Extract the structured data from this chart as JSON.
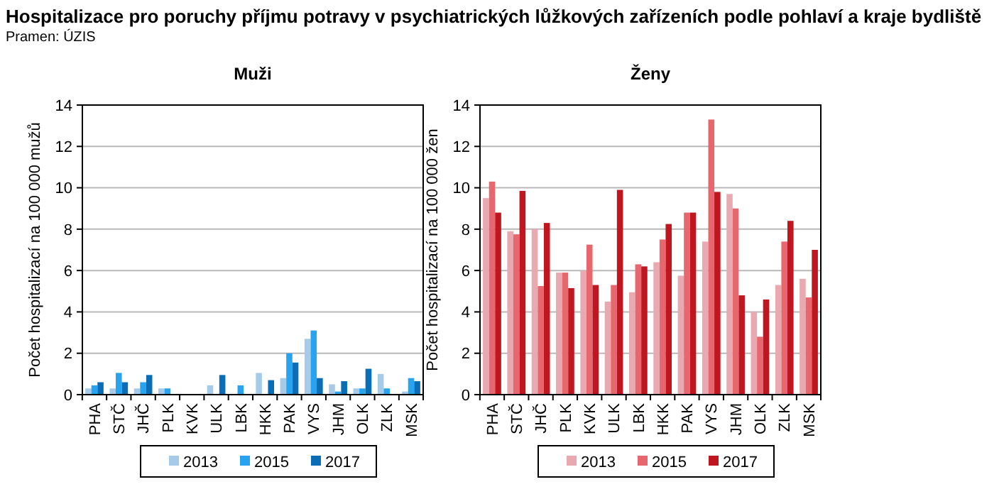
{
  "chart_data": [
    {
      "type": "bar",
      "title": "Hospitalizace pro poruchy příjmu potravy v psychiatrických lůžkových zařízeních podle pohlaví a kraje bydliště",
      "subtitle": "Muži",
      "annotations": [
        "Pramen: ÚZIS"
      ],
      "ylabel": "Počet hospitalizací na 100 000 mužů",
      "categories": [
        "PHA",
        "STČ",
        "JHČ",
        "PLK",
        "KVK",
        "ULK",
        "LBK",
        "HKK",
        "PAK",
        "VYS",
        "JHM",
        "OLK",
        "ZLK",
        "MSK"
      ],
      "series": [
        {
          "name": "2013",
          "color": "#a6cbe8",
          "values": [
            0.3,
            0.3,
            0.3,
            0.3,
            0,
            0.45,
            0,
            1.05,
            0.8,
            2.7,
            0.5,
            0.3,
            1.0,
            0.15
          ]
        },
        {
          "name": "2015",
          "color": "#27a3f0",
          "values": [
            0.45,
            1.05,
            0.6,
            0.3,
            0,
            0,
            0.45,
            0,
            2.0,
            3.1,
            0.15,
            0.3,
            0.3,
            0.8
          ]
        },
        {
          "name": "2017",
          "color": "#0b6db5",
          "values": [
            0.6,
            0.6,
            0.95,
            0,
            0,
            0.95,
            0,
            0.7,
            1.55,
            0.8,
            0.65,
            1.25,
            0,
            0.65
          ]
        }
      ],
      "ylim": [
        0,
        14
      ],
      "yticks": [
        0,
        2,
        4,
        6,
        8,
        10,
        12,
        14
      ],
      "grid": "y",
      "legend": "bottom"
    },
    {
      "type": "bar",
      "subtitle": "Ženy",
      "ylabel": "Počet hospitalizací na 100 000 žen",
      "categories": [
        "PHA",
        "STČ",
        "JHČ",
        "PLK",
        "KVK",
        "ULK",
        "LBK",
        "HKK",
        "PAK",
        "VYS",
        "JHM",
        "OLK",
        "ZLK",
        "MSK"
      ],
      "series": [
        {
          "name": "2013",
          "color": "#e8aab0",
          "values": [
            9.5,
            7.9,
            8.0,
            5.9,
            6.0,
            4.5,
            4.95,
            6.4,
            5.75,
            7.4,
            9.7,
            4.0,
            5.3,
            5.6
          ]
        },
        {
          "name": "2015",
          "color": "#e8676f",
          "values": [
            10.3,
            7.75,
            5.25,
            5.9,
            7.25,
            5.3,
            6.3,
            7.5,
            8.8,
            13.3,
            9.0,
            2.8,
            7.4,
            4.7
          ]
        },
        {
          "name": "2017",
          "color": "#c0161f",
          "values": [
            8.8,
            9.85,
            8.3,
            5.15,
            5.3,
            9.9,
            6.2,
            8.25,
            8.8,
            9.8,
            4.8,
            4.6,
            8.4,
            7.0
          ]
        }
      ],
      "ylim": [
        0,
        14
      ],
      "yticks": [
        0,
        2,
        4,
        6,
        8,
        10,
        12,
        14
      ],
      "grid": "y",
      "legend": "bottom"
    }
  ]
}
